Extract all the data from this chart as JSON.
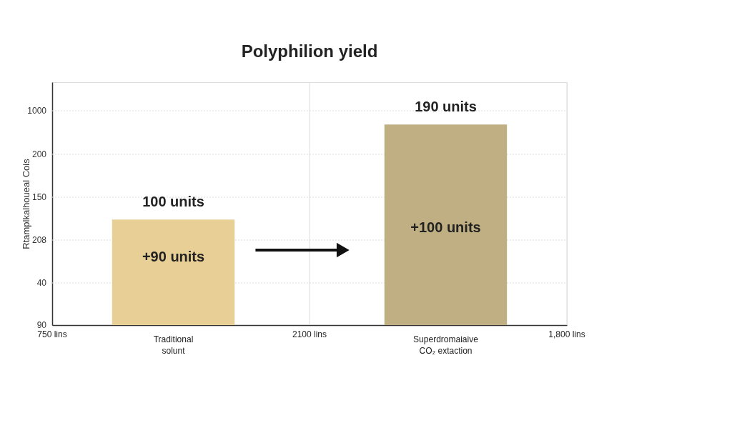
{
  "chart_data": {
    "type": "bar",
    "title": "Polyphilion yield",
    "ylabel": "Rtamplkalhoueal Cois",
    "categories": [
      "Traditional solunt",
      "Superdromaiaive CO₂ extaction"
    ],
    "values": [
      100,
      190
    ],
    "colors": [
      "#e8cf96",
      "#bfaf82"
    ],
    "value_labels": [
      "100 units",
      "190 units"
    ],
    "ylim": [
      0,
      230
    ],
    "tick_labels": "x",
    "grid": true,
    "annotations": [
      "750 lins",
      "2100 lins",
      "1,800 lins",
      "90",
      "40",
      "208",
      "150",
      "200",
      "1000",
      "+90 units",
      "+100 units"
    ]
  }
}
